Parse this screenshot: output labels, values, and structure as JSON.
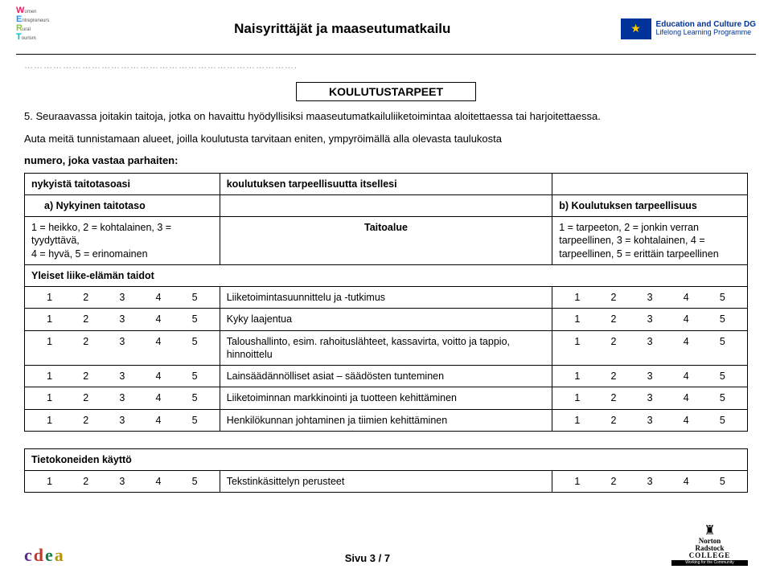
{
  "header": {
    "title": "Naisyrittäjät ja maaseutumatkailu",
    "logo_left": {
      "w": "W",
      "wtxt": "omen",
      "e": "E",
      "etxt": "ntrepreneurs",
      "r": "R",
      "rtxt": "ural",
      "t": "T",
      "ttxt": "ourism"
    },
    "eu": {
      "line1": "Education and Culture DG",
      "line2": "Lifelong Learning Programme"
    }
  },
  "dotted": "………………………………………………………………………….",
  "section_title": "KOULUTUSTARPEET",
  "intro_num": "5.",
  "intro_1": "Seuraavassa joitakin taitoja, jotka on havaittu hyödyllisiksi maaseutumatkailuliiketoimintaa aloitettaessa tai harjoitettaessa.",
  "intro_2": "Auta meitä tunnistamaan alueet, joilla koulutusta tarvitaan eniten, ympyröimällä alla olevasta taulukosta",
  "intro_3": "numero, joka vastaa parhaiten:",
  "table": {
    "header": {
      "left": "nykyistä taitotasoasi",
      "mid": "koulutuksen tarpeellisuutta itsellesi",
      "right": ""
    },
    "sub": {
      "left": "a) Nykyinen taitotaso",
      "right": "b) Koulutuksen tarpeellisuus"
    },
    "legend": {
      "left_1": "1 = heikko, 2 = kohtalainen, 3 = tyydyttävä,",
      "left_2": "4 = hyvä, 5 = erinomainen",
      "mid": "Taitoalue",
      "right": "1 = tarpeeton, 2 = jonkin verran tarpeellinen, 3 = kohtalainen, 4 = tarpeellinen, 5 = erittäin tarpeellinen"
    },
    "section1": "Yleiset liike-elämän taidot",
    "rows1": [
      {
        "skill": "Liiketoimintasuunnittelu ja -tutkimus"
      },
      {
        "skill": "Kyky laajentua"
      },
      {
        "skill": "Taloushallinto, esim. rahoituslähteet, kassavirta, voitto ja tappio, hinnoittelu"
      },
      {
        "skill": "Lainsäädännölliset asiat – säädösten tunteminen"
      },
      {
        "skill": "Liiketoiminnan markkinointi ja tuotteen kehittäminen"
      },
      {
        "skill": "Henkilökunnan johtaminen ja tiimien kehittäminen"
      }
    ],
    "section2": "Tietokoneiden käyttö",
    "rows2": [
      {
        "skill": "Tekstinkäsittelyn perusteet"
      }
    ],
    "scale": [
      "1",
      "2",
      "3",
      "4",
      "5"
    ]
  },
  "footer": {
    "page": "Sivu 3 / 7",
    "norton1": "Norton",
    "norton2": "Radstock",
    "norton3": "COLLEGE",
    "norton4": "Working for the Community"
  }
}
